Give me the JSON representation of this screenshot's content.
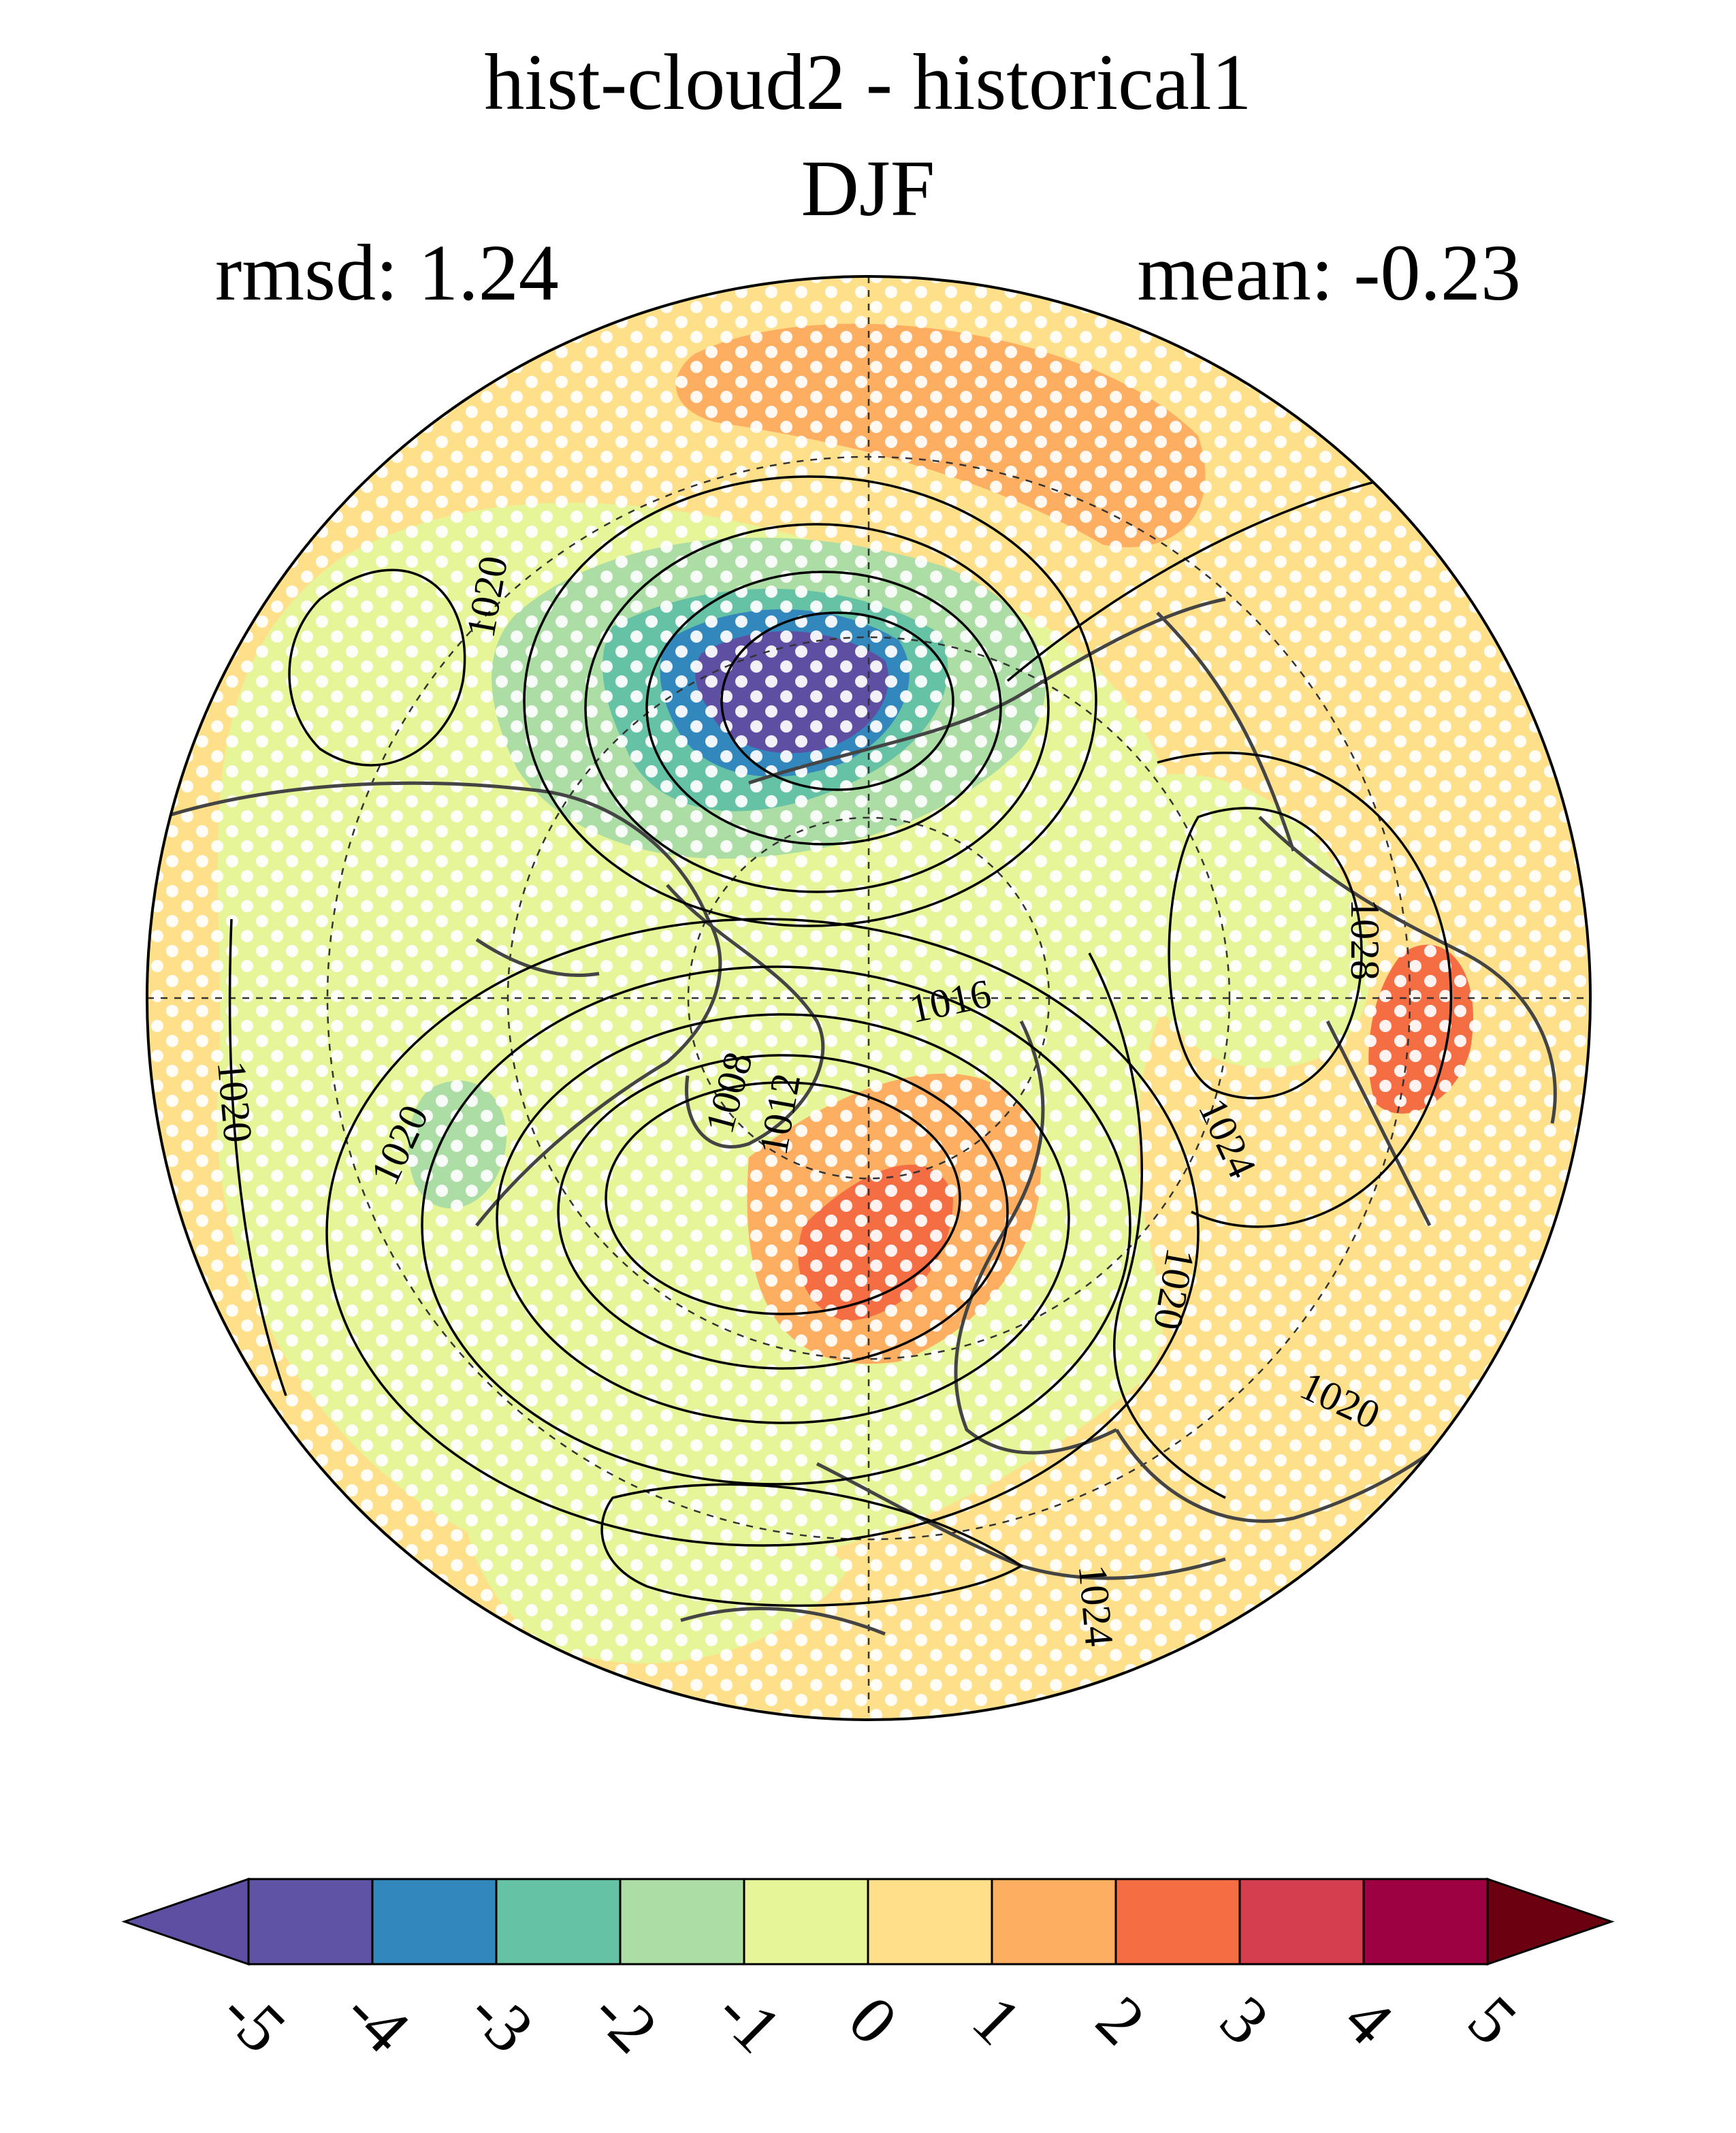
{
  "header": {
    "title_line1": "hist-cloud2 - historical1",
    "title_line2": "DJF",
    "rmsd_text": "rmsd: 1.24",
    "mean_text": "mean: -0.23"
  },
  "map": {
    "projection": "north-polar-stereographic",
    "contour_labels": [
      "1020",
      "1020",
      "1020",
      "1016",
      "1008",
      "1012",
      "1024",
      "1020",
      "1020",
      "1024",
      "1028"
    ],
    "stippling": "white-dots"
  },
  "colorbar": {
    "ticks": [
      "-5",
      "-4",
      "-3",
      "-2",
      "-1",
      "0",
      "1",
      "2",
      "3",
      "4",
      "5"
    ],
    "colors": [
      "#5e4fa2",
      "#5f53a5",
      "#3288bd",
      "#66c2a5",
      "#abdda4",
      "#e6f598",
      "#fee08b",
      "#fdae61",
      "#f46d43",
      "#d53e4f",
      "#9e0142",
      "#6a0010"
    ],
    "extend": "both"
  }
}
